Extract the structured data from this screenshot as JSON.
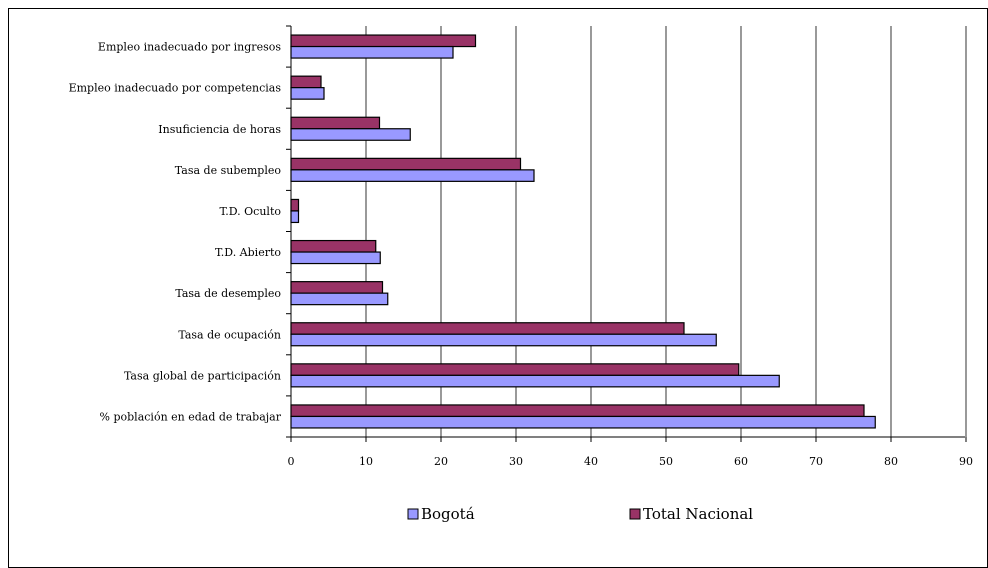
{
  "chart_data": {
    "type": "bar",
    "orientation": "horizontal",
    "categories": [
      "Empleo inadecuado por ingresos",
      "Empleo inadecuado por competencias",
      "Insuficiencia de horas",
      "Tasa de subempleo",
      "T.D. Oculto",
      "T.D. Abierto",
      "Tasa de desempleo",
      "Tasa de ocupación",
      "Tasa global de participación",
      "% población en edad de trabajar"
    ],
    "series": [
      {
        "name": "Total Nacional",
        "color": "#993366",
        "values": [
          24.6,
          4.0,
          11.8,
          30.6,
          1.0,
          11.3,
          12.2,
          52.4,
          59.7,
          76.4
        ]
      },
      {
        "name": "Bogotá",
        "color": "#9999ff",
        "values": [
          21.6,
          4.4,
          15.9,
          32.4,
          1.0,
          11.9,
          12.9,
          56.7,
          65.1,
          77.9
        ]
      }
    ],
    "xlim": [
      0,
      90
    ],
    "xticks": [
      "0",
      "10",
      "20",
      "30",
      "40",
      "50",
      "60",
      "70",
      "80",
      "90"
    ],
    "grid": true,
    "legend": {
      "placement": "bottom",
      "entries": [
        {
          "name": "Bogotá",
          "color": "#9999ff"
        },
        {
          "name": "Total Nacional",
          "color": "#993366"
        }
      ]
    },
    "title": "",
    "xlabel": "",
    "ylabel": ""
  }
}
